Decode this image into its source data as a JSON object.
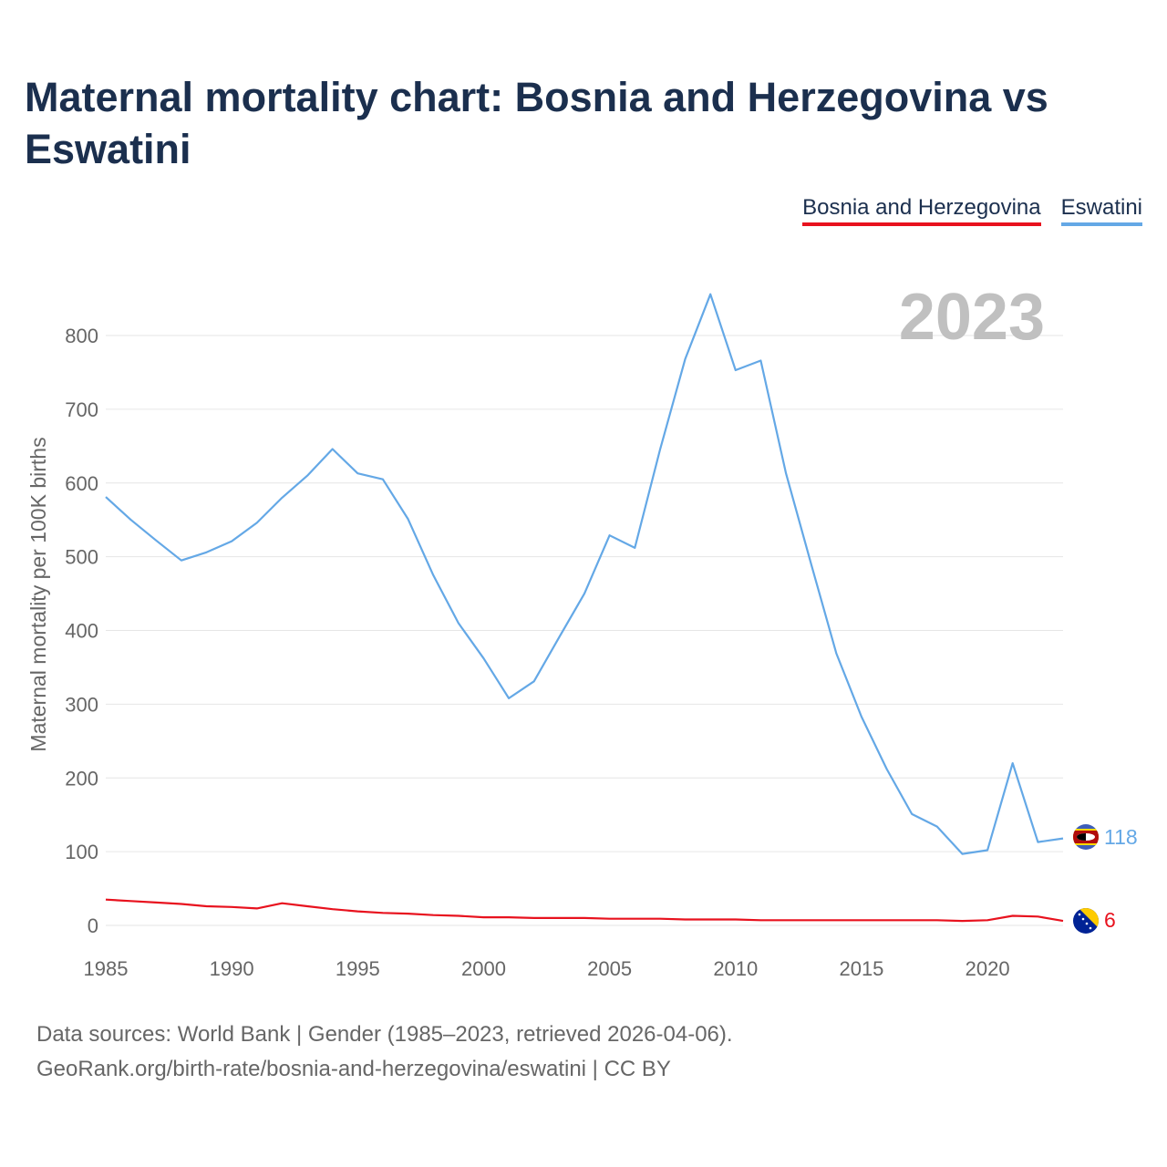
{
  "title": "Maternal mortality chart: Bosnia and Herzegovina vs Eswatini",
  "legend": {
    "bih": "Bosnia and Herzegovina",
    "swz": "Eswatini"
  },
  "footer": {
    "sources": "Data sources: World Bank | Gender (1985–2023, retrieved 2026-04-06).",
    "link": "GeoRank.org/birth-rate/bosnia-and-herzegovina/eswatini | CC BY"
  },
  "chart_data": {
    "type": "line",
    "title": "Maternal mortality chart: Bosnia and Herzegovina vs Eswatini",
    "year_label": "2023",
    "xlabel": "",
    "ylabel": "Maternal mortality per 100K births",
    "xlim": [
      1985,
      2023
    ],
    "ylim": [
      0,
      870
    ],
    "x_ticks": [
      1985,
      1990,
      1995,
      2000,
      2005,
      2010,
      2015,
      2020
    ],
    "y_ticks": [
      0,
      100,
      200,
      300,
      400,
      500,
      600,
      700,
      800
    ],
    "grid": true,
    "legend_position": "top-right",
    "x": [
      1985,
      1986,
      1987,
      1988,
      1989,
      1990,
      1991,
      1992,
      1993,
      1994,
      1995,
      1996,
      1997,
      1998,
      1999,
      2000,
      2001,
      2002,
      2003,
      2004,
      2005,
      2006,
      2007,
      2008,
      2009,
      2010,
      2011,
      2012,
      2013,
      2014,
      2015,
      2016,
      2017,
      2018,
      2019,
      2020,
      2021,
      2022,
      2023
    ],
    "series": [
      {
        "name": "Bosnia and Herzegovina",
        "color": "#e8121e",
        "end_label": "6",
        "values": [
          35,
          33,
          31,
          29,
          26,
          25,
          23,
          30,
          26,
          22,
          19,
          17,
          16,
          14,
          13,
          11,
          11,
          10,
          10,
          10,
          9,
          9,
          9,
          8,
          8,
          8,
          7,
          7,
          7,
          7,
          7,
          7,
          7,
          7,
          6,
          7,
          13,
          12,
          6
        ]
      },
      {
        "name": "Eswatini",
        "color": "#64a8e6",
        "end_label": "118",
        "values": [
          581,
          550,
          522,
          495,
          506,
          521,
          546,
          580,
          610,
          646,
          613,
          605,
          551,
          475,
          410,
          362,
          308,
          331,
          391,
          450,
          529,
          512,
          645,
          768,
          856,
          753,
          766,
          613,
          490,
          369,
          283,
          212,
          151,
          134,
          97,
          102,
          220,
          113,
          118
        ]
      }
    ]
  }
}
